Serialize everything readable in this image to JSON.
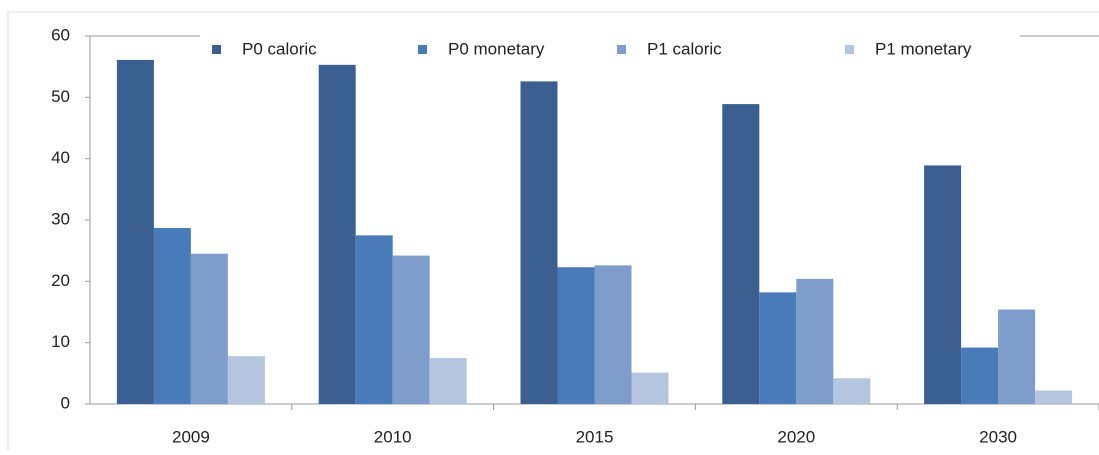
{
  "chart_data": {
    "type": "bar",
    "categories": [
      "2009",
      "2010",
      "2015",
      "2020",
      "2030"
    ],
    "series": [
      {
        "name": "P0 caloric",
        "color": "#3b5f90",
        "values": [
          56.1,
          55.3,
          52.6,
          48.9,
          38.9
        ]
      },
      {
        "name": "P0 monetary",
        "color": "#4a7bb9",
        "values": [
          28.7,
          27.5,
          22.3,
          18.2,
          9.2
        ]
      },
      {
        "name": "P1 caloric",
        "color": "#7f9dca",
        "values": [
          24.5,
          24.2,
          22.6,
          20.4,
          15.4
        ]
      },
      {
        "name": "P1 monetary",
        "color": "#b5c5df",
        "values": [
          7.8,
          7.5,
          5.1,
          4.2,
          2.2
        ]
      }
    ],
    "ylim": [
      0,
      60
    ],
    "yticks": [
      0,
      10,
      20,
      30,
      40,
      50,
      60
    ],
    "grid": false,
    "legend": "top"
  }
}
